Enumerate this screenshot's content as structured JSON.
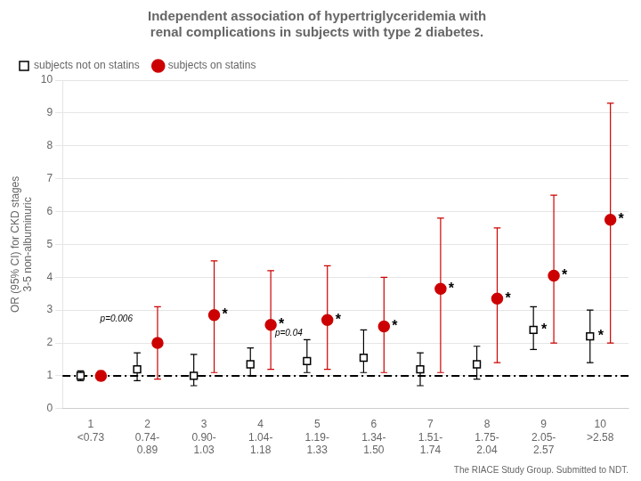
{
  "chart_data": {
    "type": "errorbar",
    "title": "Independent association of hypertriglyceridemia with\nrenal complications in subjects with type 2 diabetes.",
    "y_label": "OR (95% CI) for CKD stages\n3-5 non-albuminuric",
    "categories": [
      "1",
      "2",
      "3",
      "4",
      "5",
      "6",
      "7",
      "8",
      "9",
      "10"
    ],
    "x_sublabels": [
      "<0.73",
      "0.74-\n0.89",
      "0.90-\n1.03",
      "1.04-\n1.18",
      "1.19-\n1.33",
      "1.34-\n1.50",
      "1.51-\n1.74",
      "1.75-\n2.04",
      "2.05-\n2.57",
      ">2.58"
    ],
    "series": [
      {
        "name": "subjects not on statins",
        "color": "#000000",
        "marker": "square",
        "values": [
          1.0,
          1.2,
          1.0,
          1.35,
          1.45,
          1.55,
          1.2,
          1.35,
          2.4,
          2.2
        ],
        "ci_low": [
          0.85,
          0.85,
          0.7,
          1.0,
          1.1,
          1.1,
          0.7,
          0.9,
          1.8,
          1.4
        ],
        "ci_high": [
          1.15,
          1.7,
          1.65,
          1.85,
          2.1,
          2.4,
          1.7,
          1.9,
          3.1,
          3.0
        ]
      },
      {
        "name": "subjects on statins",
        "color": "#cc0000",
        "marker": "circle",
        "values": [
          1.0,
          2.0,
          2.85,
          2.55,
          2.7,
          2.5,
          3.65,
          3.35,
          4.05,
          5.75
        ],
        "ci_low": [
          0.85,
          0.9,
          1.1,
          1.2,
          1.2,
          1.1,
          1.1,
          1.4,
          2.0,
          2.0
        ],
        "ci_high": [
          1.15,
          3.1,
          4.5,
          4.2,
          4.35,
          4.0,
          5.8,
          5.5,
          6.5,
          9.3
        ]
      }
    ],
    "ylim": [
      0,
      10
    ],
    "yticks": [
      0,
      1,
      2,
      3,
      4,
      5,
      6,
      7,
      8,
      9,
      10
    ],
    "grid": true,
    "legend": "upper left",
    "reference_line": 1.0,
    "annotations": [
      {
        "text": "p=0.006",
        "x": "2",
        "y": 2.6
      },
      {
        "text": "p=0.04",
        "x": "5",
        "y": 2.15
      },
      {
        "text": "*",
        "x": "3",
        "y": 2.85,
        "series": "subjects on statins"
      },
      {
        "text": "*",
        "x": "4",
        "y": 2.55,
        "series": "subjects on statins"
      },
      {
        "text": "*",
        "x": "5",
        "y": 2.7,
        "series": "subjects on statins"
      },
      {
        "text": "*",
        "x": "6",
        "y": 2.5,
        "series": "subjects on statins"
      },
      {
        "text": "*",
        "x": "7",
        "y": 3.65,
        "series": "subjects on statins"
      },
      {
        "text": "*",
        "x": "8",
        "y": 3.35,
        "series": "subjects on statins"
      },
      {
        "text": "*",
        "x": "9",
        "y": 4.05,
        "series": "subjects on statins"
      },
      {
        "text": "*",
        "x": "10",
        "y": 5.75,
        "series": "subjects on statins"
      },
      {
        "text": "*",
        "x": "9",
        "y": 2.4,
        "series": "subjects not on statins"
      },
      {
        "text": "*",
        "x": "10",
        "y": 2.2,
        "series": "subjects not on statins"
      }
    ],
    "footnote": "The RIACE Study Group. Submitted to NDT."
  }
}
